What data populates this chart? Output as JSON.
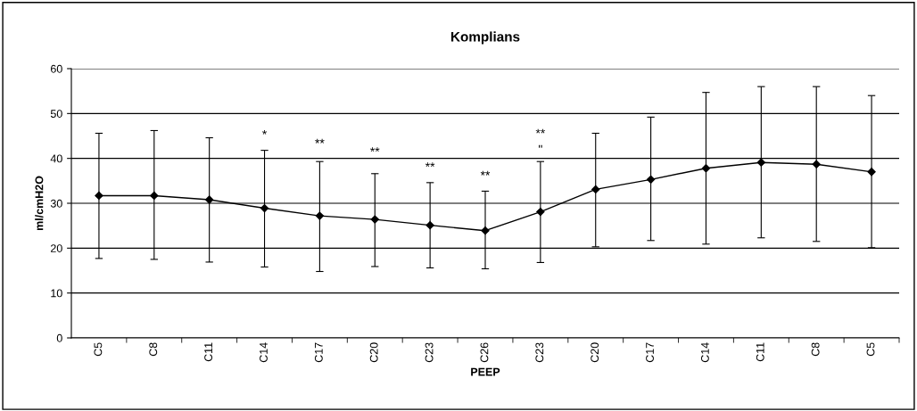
{
  "chart_data": {
    "type": "line",
    "title": "Komplians",
    "xlabel": "PEEP",
    "ylabel": "ml/cmH2O",
    "categories": [
      "C5",
      "C8",
      "C11",
      "C14",
      "C17",
      "C20",
      "C23",
      "C26",
      "C23",
      "C20",
      "C17",
      "C14",
      "C11",
      "C8",
      "C5"
    ],
    "series": [
      {
        "color": "#000000",
        "values": [
          31.7,
          31.7,
          30.8,
          28.9,
          27.2,
          26.4,
          25.1,
          23.9,
          28.1,
          33.1,
          35.3,
          37.8,
          39.1,
          38.7,
          37.0
        ],
        "errors": [
          [
            17.7,
            45.6
          ],
          [
            17.5,
            46.2
          ],
          [
            16.9,
            44.6
          ],
          [
            15.8,
            41.8
          ],
          [
            14.8,
            39.3
          ],
          [
            15.9,
            36.6
          ],
          [
            15.6,
            34.6
          ],
          [
            15.4,
            32.7
          ],
          [
            16.8,
            39.3
          ],
          [
            20.3,
            45.6
          ],
          [
            21.7,
            49.2
          ],
          [
            20.9,
            54.7
          ],
          [
            22.3,
            56.0
          ],
          [
            21.5,
            56.0
          ],
          [
            20.1,
            54.0
          ]
        ]
      }
    ],
    "ylim": [
      0,
      60
    ],
    "yticks": [
      0,
      10,
      20,
      30,
      40,
      50,
      60
    ],
    "grid": "y",
    "marker": "diamond",
    "line_style": "solid",
    "legend": false,
    "annotations": [
      "*",
      "**",
      "**",
      "**",
      "**",
      "**",
      "\""
    ]
  }
}
